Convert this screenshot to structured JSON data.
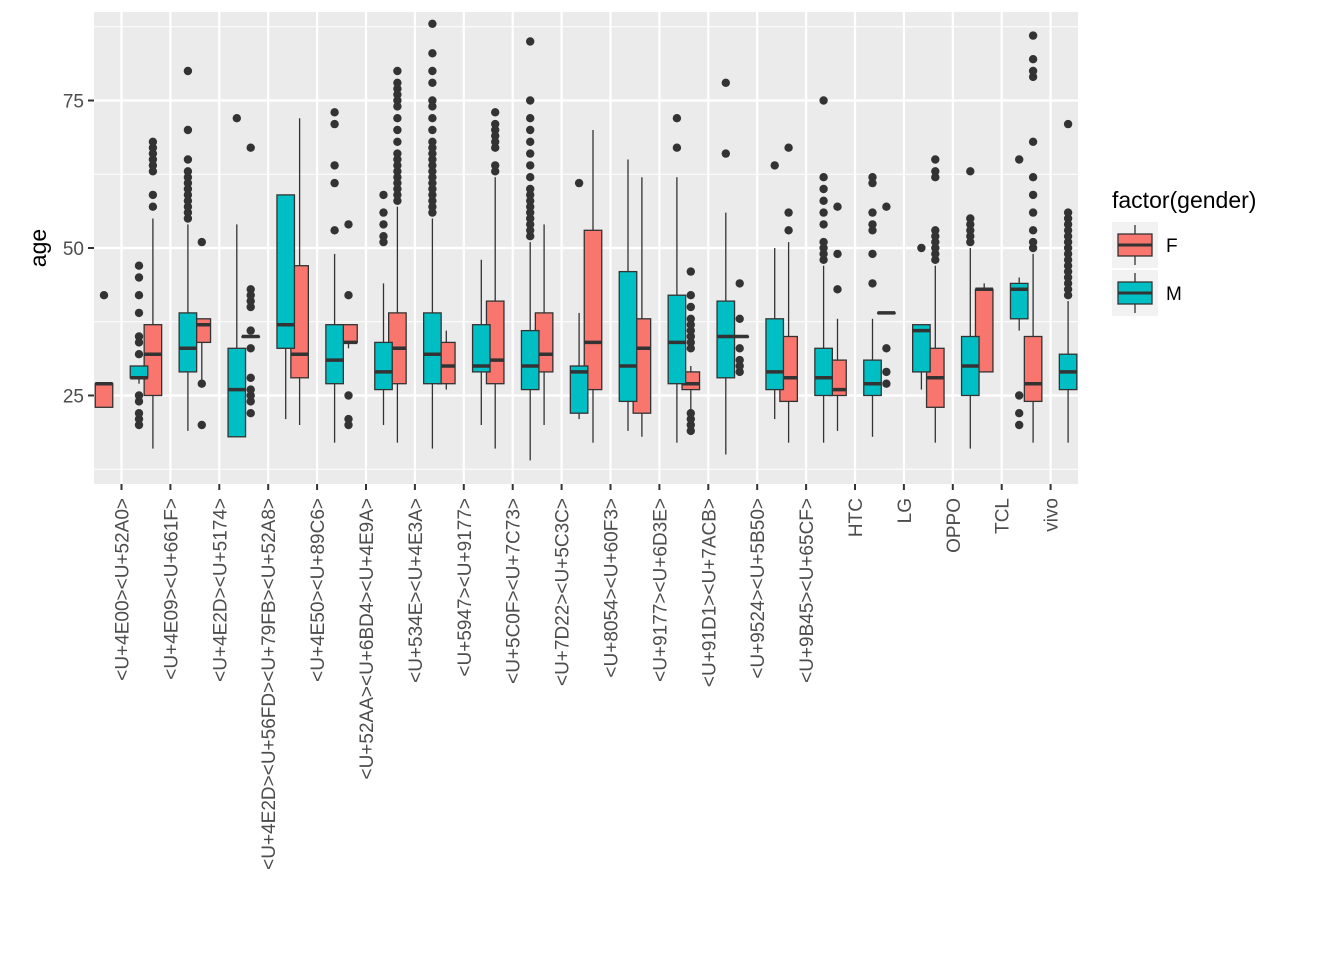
{
  "chart_data": {
    "type": "boxplot",
    "xlabel": "",
    "ylabel": "age",
    "ylim": [
      10,
      90
    ],
    "yticks": [
      25,
      50,
      75
    ],
    "grid": true,
    "legend": {
      "title": "factor(gender)",
      "position": "right",
      "entries": [
        {
          "label": "F",
          "color": "#F8766D"
        },
        {
          "label": "M",
          "color": "#00BFC4"
        }
      ]
    },
    "colors": {
      "F": "#F8766D",
      "M": "#00BFC4",
      "panel": "#EBEBEB",
      "grid": "#FFFFFF",
      "outline": "#333333"
    },
    "categories": [
      "<U+4E00><U+52A0>",
      "<U+4E09><U+661F>",
      "<U+4E2D><U+5174>",
      "<U+4E2D><U+56FD><U+79FB><U+52A8>",
      "<U+4E50><U+89C6>",
      "<U+52AA><U+6BD4><U+4E9A>",
      "<U+534E><U+4E3A>",
      "<U+5947><U+9177>",
      "<U+5C0F><U+7C73>",
      "<U+7D22><U+5C3C>",
      "<U+8054><U+60F3>",
      "<U+9177><U+6D3E>",
      "<U+91D1><U+7ACB>",
      "<U+9524><U+5B50>",
      "<U+9B45><U+65CF>",
      "HTC",
      "LG",
      "OPPO",
      "TCL",
      "vivo"
    ],
    "series": [
      {
        "name": "F",
        "boxes": [
          {
            "min": 23,
            "q1": 23,
            "median": 27,
            "q3": 27,
            "max": 27,
            "outliers": [
              42
            ]
          },
          {
            "min": 16,
            "q1": 25,
            "median": 32,
            "q3": 37,
            "max": 55,
            "outliers": [
              57,
              59,
              63,
              64,
              65,
              66,
              67,
              68
            ]
          },
          {
            "min": 27,
            "q1": 34,
            "median": 37,
            "q3": 38,
            "max": 38,
            "outliers": [
              20,
              27,
              51
            ]
          },
          {
            "min": 35,
            "q1": 35,
            "median": 35,
            "q3": 35,
            "max": 35,
            "outliers": [
              22,
              24,
              25,
              26,
              28,
              33,
              36,
              40,
              41,
              42,
              43,
              67
            ]
          },
          {
            "min": 20,
            "q1": 28,
            "median": 32,
            "q3": 47,
            "max": 72,
            "outliers": []
          },
          {
            "min": 33,
            "q1": 34,
            "median": 34,
            "q3": 37,
            "max": 37,
            "outliers": [
              20,
              21,
              25,
              42,
              54
            ]
          },
          {
            "min": 17,
            "q1": 27,
            "median": 33,
            "q3": 39,
            "max": 57,
            "outliers": [
              58,
              59,
              60,
              61,
              62,
              63,
              64,
              65,
              66,
              68,
              70,
              72,
              74,
              75,
              76,
              77,
              78,
              80
            ]
          },
          {
            "min": 26,
            "q1": 27,
            "median": 30,
            "q3": 34,
            "max": 36,
            "outliers": []
          },
          {
            "min": 16,
            "q1": 27,
            "median": 31,
            "q3": 41,
            "max": 62,
            "outliers": [
              63,
              64,
              67,
              68,
              69,
              70,
              71,
              73
            ]
          },
          {
            "min": 20,
            "q1": 29,
            "median": 32,
            "q3": 39,
            "max": 54,
            "outliers": []
          },
          {
            "min": 17,
            "q1": 26,
            "median": 34,
            "q3": 53,
            "max": 70,
            "outliers": []
          },
          {
            "min": 18,
            "q1": 22,
            "median": 33,
            "q3": 38,
            "max": 62,
            "outliers": []
          },
          {
            "min": 22,
            "q1": 26,
            "median": 27,
            "q3": 29,
            "max": 30,
            "outliers": [
              19,
              20,
              21,
              22,
              33,
              34,
              35,
              36,
              37,
              38,
              40,
              42,
              46
            ]
          },
          {
            "min": 35,
            "q1": 35,
            "median": 35,
            "q3": 35,
            "max": 35,
            "outliers": [
              29,
              30,
              31,
              33,
              38,
              44
            ]
          },
          {
            "min": 17,
            "q1": 24,
            "median": 28,
            "q3": 35,
            "max": 51,
            "outliers": [
              53,
              56,
              67
            ]
          },
          {
            "min": 19,
            "q1": 25,
            "median": 26,
            "q3": 31,
            "max": 38,
            "outliers": [
              43,
              49,
              57
            ]
          },
          {
            "min": 39,
            "q1": 39,
            "median": 39,
            "q3": 39,
            "max": 39,
            "outliers": [
              27,
              29,
              33,
              57
            ]
          },
          {
            "min": 17,
            "q1": 23,
            "median": 28,
            "q3": 33,
            "max": 47,
            "outliers": [
              48,
              49,
              50,
              51,
              52,
              53,
              62,
              63,
              65
            ]
          },
          {
            "min": 29,
            "q1": 29,
            "median": 43,
            "q3": 43,
            "max": 44,
            "outliers": []
          },
          {
            "min": 17,
            "q1": 24,
            "median": 27,
            "q3": 35,
            "max": 49,
            "outliers": [
              50,
              51,
              53,
              56,
              59,
              62,
              68,
              79,
              80,
              82,
              86
            ]
          }
        ]
      },
      {
        "name": "M",
        "boxes": [
          {
            "min": 27,
            "q1": 28,
            "median": 28,
            "q3": 30,
            "max": 30,
            "outliers": [
              20,
              21,
              22,
              24,
              25,
              32,
              34,
              35,
              39,
              42,
              45,
              47
            ]
          },
          {
            "min": 19,
            "q1": 29,
            "median": 33,
            "q3": 39,
            "max": 54,
            "outliers": [
              55,
              56,
              57,
              58,
              59,
              60,
              61,
              62,
              63,
              65,
              70,
              80
            ]
          },
          {
            "min": 18,
            "q1": 18,
            "median": 26,
            "q3": 33,
            "max": 54,
            "outliers": [
              72
            ]
          },
          {
            "min": 21,
            "q1": 33,
            "median": 37,
            "q3": 59,
            "max": 59,
            "outliers": []
          },
          {
            "min": 17,
            "q1": 27,
            "median": 31,
            "q3": 37,
            "max": 49,
            "outliers": [
              53,
              61,
              64,
              71,
              73
            ]
          },
          {
            "min": 20,
            "q1": 26,
            "median": 29,
            "q3": 34,
            "max": 44,
            "outliers": [
              51,
              52,
              54,
              56,
              59
            ]
          },
          {
            "min": 16,
            "q1": 27,
            "median": 32,
            "q3": 39,
            "max": 55,
            "outliers": [
              56,
              57,
              58,
              59,
              60,
              61,
              62,
              63,
              64,
              65,
              66,
              67,
              68,
              70,
              72,
              74,
              75,
              78,
              80,
              83,
              88
            ]
          },
          {
            "min": 20,
            "q1": 29,
            "median": 30,
            "q3": 37,
            "max": 48,
            "outliers": []
          },
          {
            "min": 14,
            "q1": 26,
            "median": 30,
            "q3": 36,
            "max": 51,
            "outliers": [
              52,
              53,
              54,
              55,
              56,
              57,
              58,
              59,
              60,
              62,
              64,
              66,
              68,
              70,
              72,
              75,
              85
            ]
          },
          {
            "min": 21,
            "q1": 22,
            "median": 29,
            "q3": 30,
            "max": 39,
            "outliers": [
              61
            ]
          },
          {
            "min": 19,
            "q1": 24,
            "median": 30,
            "q3": 46,
            "max": 65,
            "outliers": []
          },
          {
            "min": 17,
            "q1": 27,
            "median": 34,
            "q3": 42,
            "max": 62,
            "outliers": [
              67,
              72
            ]
          },
          {
            "min": 15,
            "q1": 28,
            "median": 35,
            "q3": 41,
            "max": 56,
            "outliers": [
              66,
              78
            ]
          },
          {
            "min": 21,
            "q1": 26,
            "median": 29,
            "q3": 38,
            "max": 50,
            "outliers": [
              64
            ]
          },
          {
            "min": 17,
            "q1": 25,
            "median": 28,
            "q3": 33,
            "max": 47,
            "outliers": [
              48,
              49,
              50,
              51,
              54,
              56,
              58,
              60,
              62,
              75
            ]
          },
          {
            "min": 18,
            "q1": 25,
            "median": 27,
            "q3": 31,
            "max": 38,
            "outliers": [
              44,
              49,
              53,
              54,
              56,
              61,
              62
            ]
          },
          {
            "min": 26,
            "q1": 29,
            "median": 36,
            "q3": 37,
            "max": 37,
            "outliers": [
              50
            ]
          },
          {
            "min": 16,
            "q1": 25,
            "median": 30,
            "q3": 35,
            "max": 50,
            "outliers": [
              51,
              52,
              53,
              54,
              55,
              63
            ]
          },
          {
            "min": 36,
            "q1": 38,
            "median": 43,
            "q3": 44,
            "max": 45,
            "outliers": [
              20,
              22,
              25,
              65
            ]
          },
          {
            "min": 17,
            "q1": 26,
            "median": 29,
            "q3": 32,
            "max": 41,
            "outliers": [
              42,
              43,
              44,
              45,
              46,
              47,
              48,
              49,
              50,
              51,
              52,
              53,
              54,
              55,
              56,
              71
            ]
          }
        ]
      }
    ]
  }
}
